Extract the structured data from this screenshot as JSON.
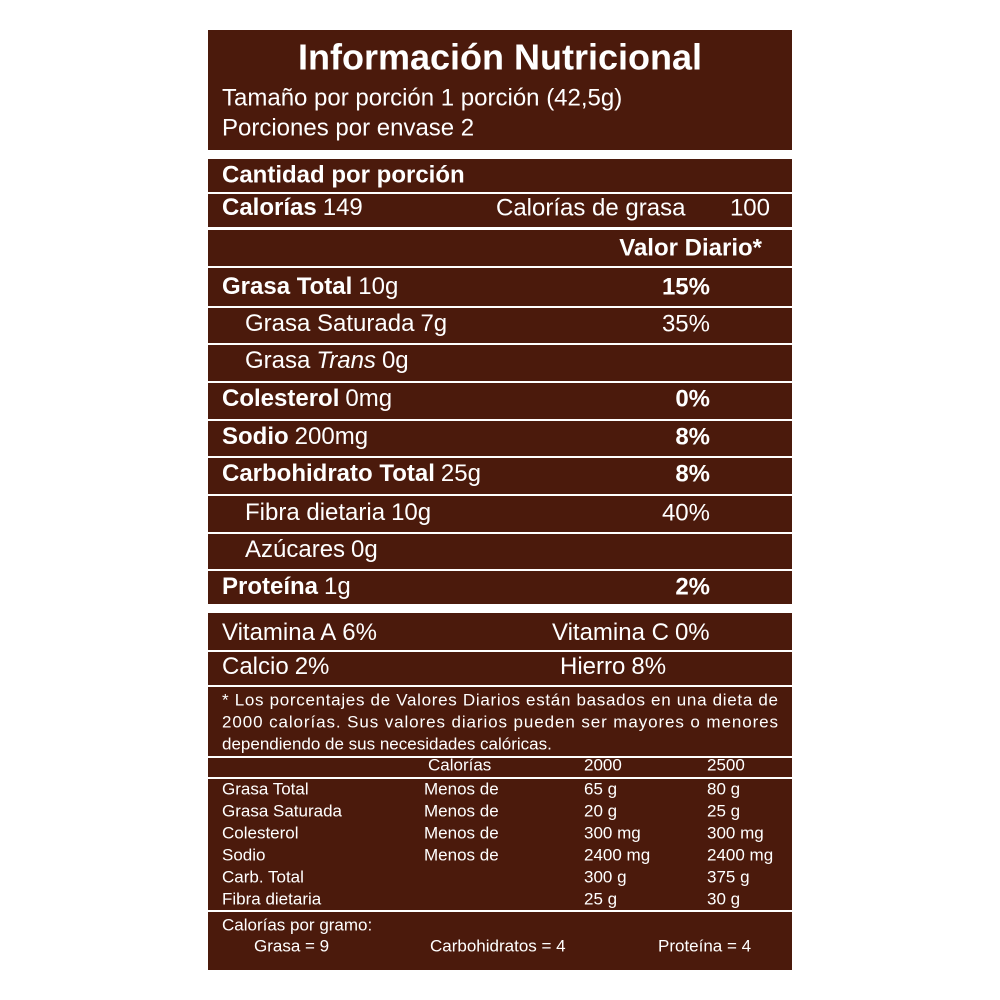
{
  "header": {
    "title": "Información Nutricional",
    "serving_size": "Tamaño por porción 1 porción (42,5g)",
    "servings": "Porciones por envase 2"
  },
  "amount_header": "Cantidad por porción",
  "calories": {
    "label": "Calorías",
    "value": "149",
    "fat_label": "Calorías de grasa",
    "fat_value": "100"
  },
  "dv_header": "Valor Diario*",
  "nutrients": [
    {
      "name": "Grasa Total",
      "amount": "10g",
      "dv": "15%"
    },
    {
      "name": "Grasa Saturada",
      "amount": "7g",
      "dv": "35%"
    },
    {
      "name": "Grasa",
      "italic": "Trans",
      "amount": "0g"
    },
    {
      "name": "Colesterol",
      "amount": "0mg",
      "dv": "0%"
    },
    {
      "name": "Sodio",
      "amount": "200mg",
      "dv": "8%"
    },
    {
      "name": "Carbohidrato Total",
      "amount": "25g",
      "dv": "8%"
    },
    {
      "name": "Fibra dietaria",
      "amount": "10g",
      "dv": "40%"
    },
    {
      "name": "Azúcares",
      "amount": "0g"
    },
    {
      "name": "Proteína",
      "amount": "1g",
      "dv": "2%"
    }
  ],
  "vitamins": [
    [
      {
        "name": "Vitamina A",
        "dv": "6%"
      },
      {
        "name": "Vitamina C",
        "dv": "0%"
      }
    ],
    [
      {
        "name": "Calcio",
        "dv": "2%"
      },
      {
        "name": "Hierro",
        "dv": "8%"
      }
    ]
  ],
  "footnote": [
    "* Los porcentajes de Valores Diarios están basados en una dieta de",
    "2000 calorías. Sus valores diarios pueden ser mayores o menores",
    "dependiendo de sus necesidades calóricas."
  ],
  "reference": {
    "header": [
      "Calorías",
      "2000",
      "2500"
    ],
    "rows": [
      [
        "Grasa Total",
        "Menos de",
        "65 g",
        "80 g"
      ],
      [
        "Grasa Saturada",
        "Menos de",
        "20 g",
        "25 g"
      ],
      [
        "Colesterol",
        "Menos de",
        "300 mg",
        "300 mg"
      ],
      [
        "Sodio",
        "Menos de",
        "2400 mg",
        "2400 mg"
      ],
      [
        "Carb. Total",
        "",
        "300 g",
        "375 g"
      ],
      [
        "Fibra dietaria",
        "",
        "25 g",
        "30 g"
      ]
    ]
  },
  "calories_per_gram": {
    "label": "Calorías por gramo:",
    "items": [
      "Grasa = 9",
      "Carbohidratos = 4",
      "Proteína = 4"
    ]
  }
}
